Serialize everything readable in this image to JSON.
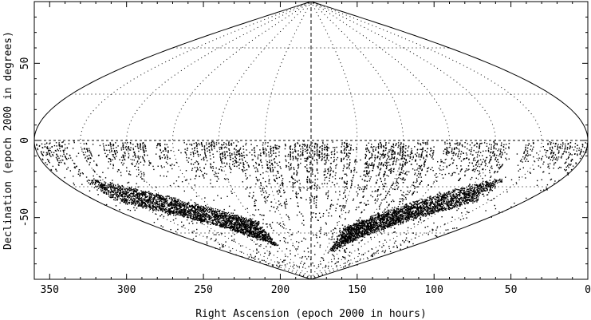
{
  "chart_data": {
    "type": "scatter",
    "projection": "sinusoidal",
    "xlabel": "Right Ascension (epoch 2000 in hours)",
    "ylabel": "Declination (epoch 2000 in degrees)",
    "xlim": [
      360,
      0
    ],
    "ylim": [
      -90,
      90
    ],
    "x_reversed": true,
    "x_ticks": [
      350,
      300,
      250,
      200,
      150,
      100,
      50,
      0
    ],
    "y_ticks": [
      50,
      0,
      -50
    ],
    "grid": true,
    "grid_ra_step_deg": 30,
    "grid_dec_step_deg": 30,
    "central_meridian": 180,
    "point_color": "#000000",
    "regions": [
      {
        "name": "",
        "ra_range": [
          0,
          360
        ],
        "dec_range": [
          -25,
          0
        ],
        "density": "high"
      },
      {
        "name": "",
        "ra_range": [
          230,
          340
        ],
        "dec_range": [
          -72,
          -28
        ],
        "density": "high"
      },
      {
        "name": "",
        "ra_range": [
          60,
          150
        ],
        "dec_range": [
          -75,
          -30
        ],
        "density": "high"
      },
      {
        "name": "",
        "ra_range": [
          100,
          230
        ],
        "dec_range": [
          -60,
          -25
        ],
        "density": "medium"
      }
    ]
  }
}
